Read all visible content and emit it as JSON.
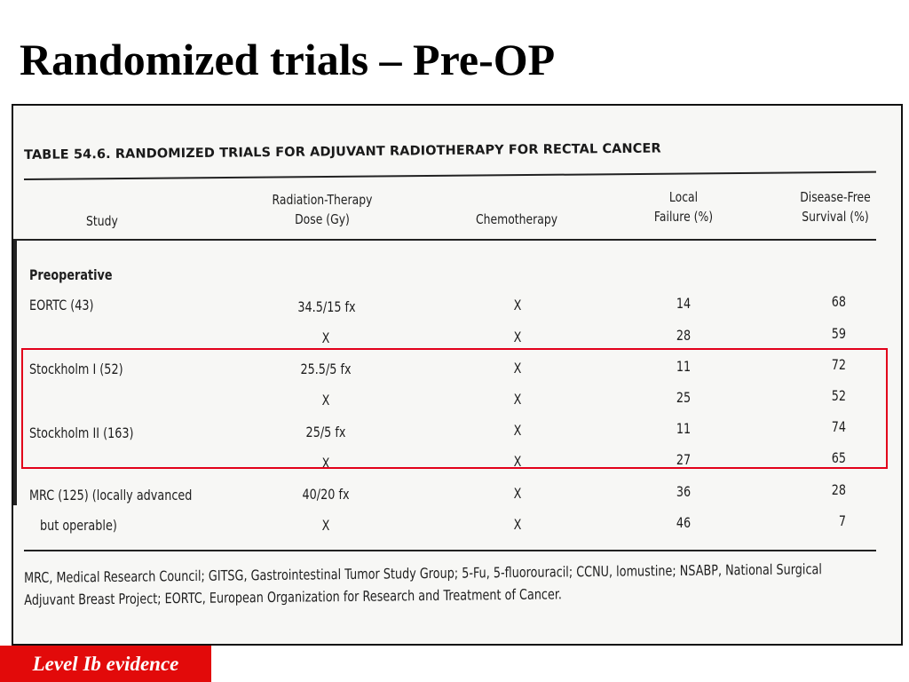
{
  "slide": {
    "title": "Randomized trials – Pre-OP",
    "evidence_label": "Level Ib evidence",
    "highlight_color": "#e2001a",
    "badge_color": "#e20a0a"
  },
  "table": {
    "caption": "TABLE 54.6. RANDOMIZED TRIALS FOR ADJUVANT RADIOTHERAPY FOR RECTAL CANCER",
    "headers": {
      "study": "Study",
      "dose_line1": "Radiation-Therapy",
      "dose_line2": "Dose (Gy)",
      "chemo": "Chemotherapy",
      "local_line1": "Local",
      "local_line2": "Failure (%)",
      "dfs_line1": "Disease-Free",
      "dfs_line2": "Survival (%)"
    },
    "section": "Preoperative",
    "rows": [
      {
        "study": "EORTC (43)",
        "dose": "34.5/15 fx",
        "chemo": "X",
        "local": "14",
        "dfs": "68"
      },
      {
        "study": "",
        "dose": "X",
        "chemo": "X",
        "local": "28",
        "dfs": "59"
      },
      {
        "study": "Stockholm I (52)",
        "dose": "25.5/5 fx",
        "chemo": "X",
        "local": "11",
        "dfs": "72"
      },
      {
        "study": "",
        "dose": "X",
        "chemo": "X",
        "local": "25",
        "dfs": "52"
      },
      {
        "study": "Stockholm II (163)",
        "dose": "25/5 fx",
        "chemo": "X",
        "local": "11",
        "dfs": "74"
      },
      {
        "study": "",
        "dose": "X",
        "chemo": "X",
        "local": "27",
        "dfs": "65"
      },
      {
        "study": "MRC (125) (locally advanced",
        "dose": "40/20 fx",
        "chemo": "X",
        "local": "36",
        "dfs": "28"
      },
      {
        "study": "but operable)",
        "dose": "X",
        "chemo": "X",
        "local": "46",
        "dfs": "7"
      }
    ],
    "footnote": "MRC, Medical Research Council; GITSG, Gastrointestinal Tumor Study Group; 5-Fu, 5-fluorouracil; CCNU, lomustine; NSABP, National Surgical Adjuvant Breast Project; EORTC, European Organization for Research and Treatment of Cancer."
  }
}
